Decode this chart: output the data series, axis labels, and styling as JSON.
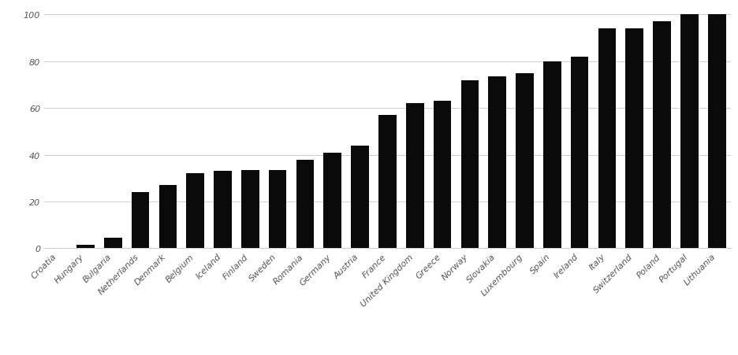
{
  "categories": [
    "Croatia",
    "Hungary",
    "Bulgaria",
    "Netherlands",
    "Denmark",
    "Belgium",
    "Iceland",
    "Finland",
    "Sweden",
    "Romania",
    "Germany",
    "Austria",
    "France",
    "United Kingdom",
    "Greece",
    "Norway",
    "Slovakia",
    "Luxembourg",
    "Spain",
    "Ireland",
    "Italy",
    "Switzerland",
    "Poland",
    "Portugal",
    "Lithuania"
  ],
  "values": [
    0,
    1.5,
    4.5,
    24,
    27,
    32,
    33,
    33.5,
    33.5,
    38,
    41,
    44,
    57,
    62,
    63,
    72,
    73.5,
    75,
    80,
    82,
    94,
    94,
    97,
    100,
    100
  ],
  "bar_color": "#0a0a0a",
  "ylim": [
    0,
    102
  ],
  "yticks": [
    0,
    20,
    40,
    60,
    80,
    100
  ],
  "grid_color": "#d0d0d0",
  "background_color": "#ffffff",
  "tick_label_fontsize": 8.0,
  "label_font_style": "italic"
}
